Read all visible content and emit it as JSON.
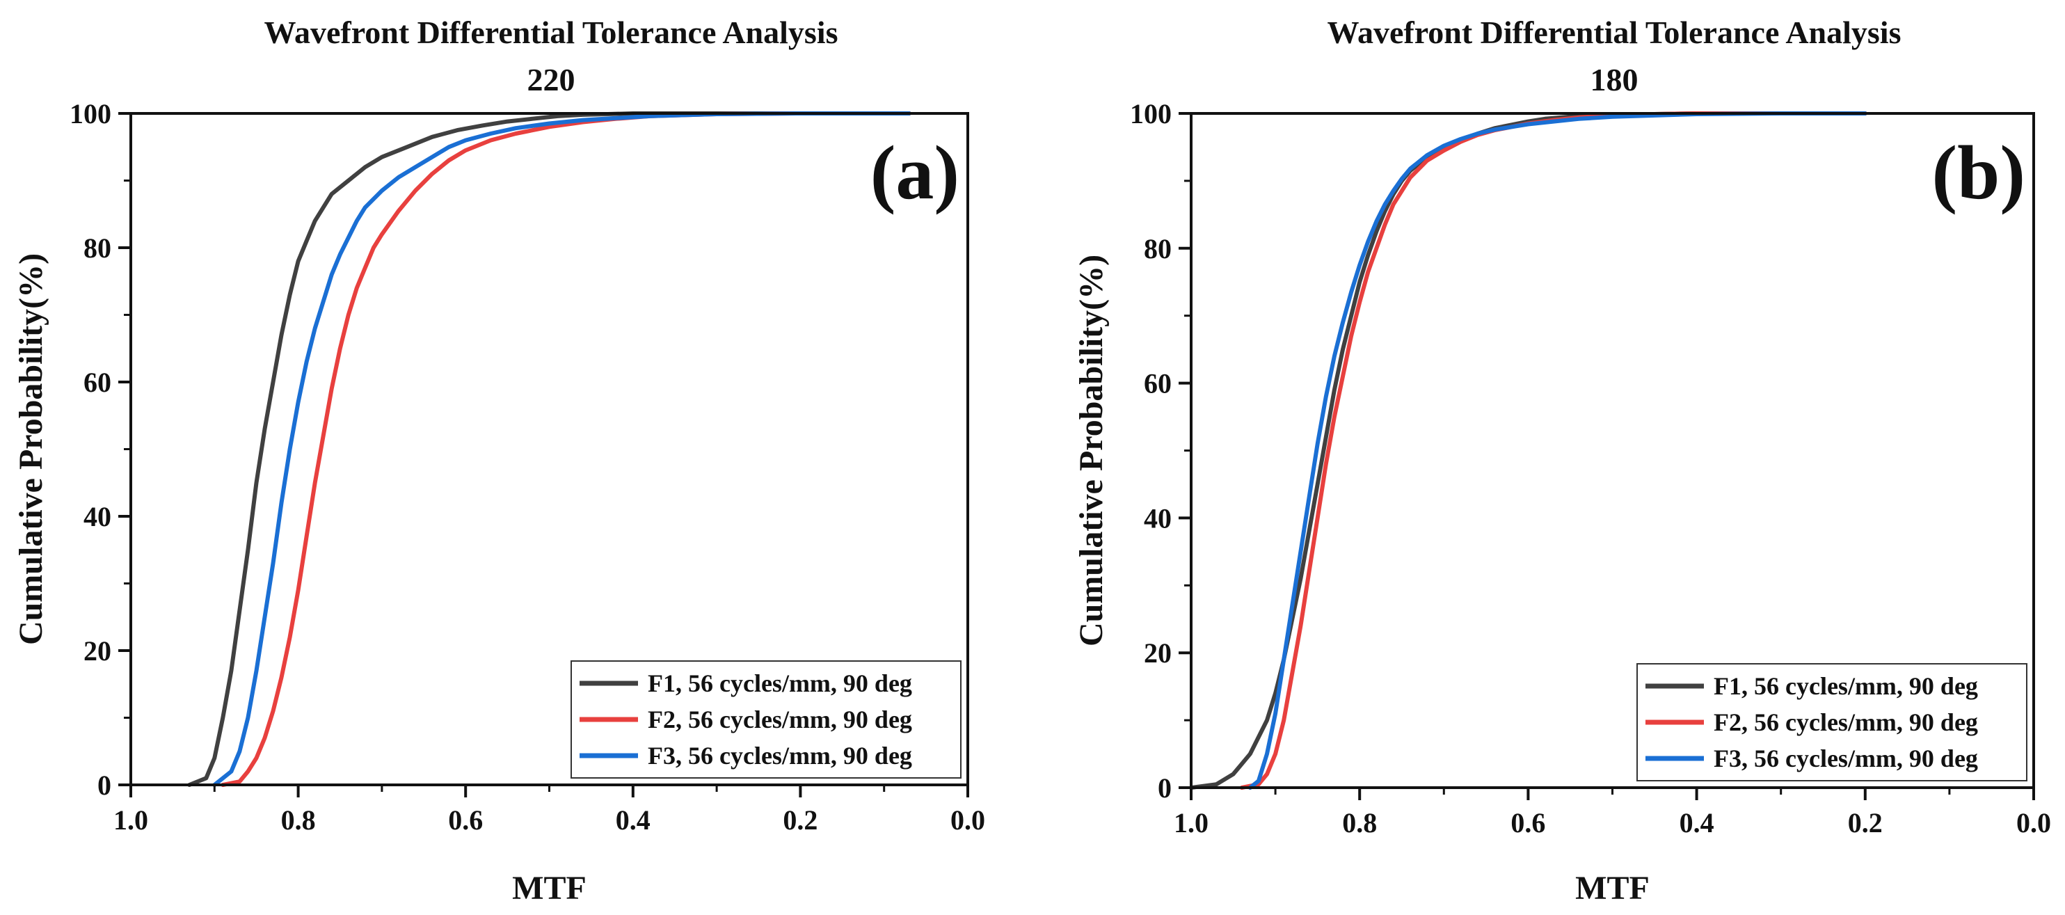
{
  "chart_data": [
    {
      "type": "line",
      "panel_label": "(a)",
      "title": "Wavefront Differential Tolerance Analysis",
      "subtitle": "220",
      "xlabel": "MTF",
      "ylabel": "Cumulative Probability(%)",
      "xlim": [
        1.0,
        0.0
      ],
      "ylim": [
        0,
        100
      ],
      "xticks": [
        "1.0",
        "0.8",
        "0.6",
        "0.4",
        "0.2",
        "0.0"
      ],
      "yticks": [
        "0",
        "20",
        "40",
        "60",
        "80",
        "100"
      ],
      "legend_position": "bottom-right",
      "series": [
        {
          "name": "F1, 56 cycles/mm, 90 deg",
          "color": "#404040",
          "x": [
            0.93,
            0.91,
            0.9,
            0.89,
            0.88,
            0.87,
            0.86,
            0.85,
            0.84,
            0.83,
            0.82,
            0.81,
            0.8,
            0.79,
            0.78,
            0.77,
            0.76,
            0.74,
            0.72,
            0.7,
            0.67,
            0.64,
            0.61,
            0.58,
            0.55,
            0.52,
            0.49,
            0.46,
            0.43,
            0.4,
            0.3,
            0.2,
            0.07
          ],
          "y": [
            0,
            1,
            4,
            10,
            17,
            26,
            35,
            45,
            53,
            60,
            67,
            73,
            78,
            81,
            84,
            86,
            88,
            90,
            92,
            93.5,
            95,
            96.5,
            97.5,
            98.2,
            98.8,
            99.2,
            99.6,
            99.8,
            99.9,
            100,
            100,
            100,
            100
          ]
        },
        {
          "name": "F2, 56 cycles/mm, 90 deg",
          "color": "#e8403e",
          "x": [
            0.89,
            0.87,
            0.86,
            0.85,
            0.84,
            0.83,
            0.82,
            0.81,
            0.8,
            0.79,
            0.78,
            0.77,
            0.76,
            0.75,
            0.74,
            0.73,
            0.72,
            0.71,
            0.7,
            0.68,
            0.66,
            0.64,
            0.62,
            0.6,
            0.57,
            0.54,
            0.5,
            0.46,
            0.42,
            0.38,
            0.3,
            0.2,
            0.07
          ],
          "y": [
            0,
            0.5,
            2,
            4,
            7,
            11,
            16,
            22,
            29,
            37,
            45,
            52,
            59,
            65,
            70,
            74,
            77,
            80,
            82,
            85.5,
            88.5,
            91,
            93,
            94.5,
            96,
            97,
            98,
            98.7,
            99.2,
            99.6,
            99.9,
            100,
            100
          ]
        },
        {
          "name": "F3, 56 cycles/mm, 90 deg",
          "color": "#1a6fd4",
          "x": [
            0.9,
            0.88,
            0.87,
            0.86,
            0.85,
            0.84,
            0.83,
            0.82,
            0.81,
            0.8,
            0.79,
            0.78,
            0.77,
            0.76,
            0.75,
            0.74,
            0.73,
            0.72,
            0.7,
            0.68,
            0.66,
            0.64,
            0.62,
            0.6,
            0.57,
            0.54,
            0.5,
            0.46,
            0.42,
            0.38,
            0.3,
            0.2,
            0.07
          ],
          "y": [
            0,
            2,
            5,
            10,
            17,
            25,
            33,
            42,
            50,
            57,
            63,
            68,
            72,
            76,
            79,
            81.5,
            84,
            86,
            88.5,
            90.5,
            92,
            93.5,
            95,
            96,
            97,
            97.8,
            98.5,
            99,
            99.3,
            99.6,
            99.9,
            100,
            100
          ]
        }
      ]
    },
    {
      "type": "line",
      "panel_label": "(b)",
      "title": "Wavefront Differential Tolerance Analysis",
      "subtitle": "180",
      "xlabel": "MTF",
      "ylabel": "Cumulative Probability(%)",
      "xlim": [
        1.0,
        0.0
      ],
      "ylim": [
        0,
        100
      ],
      "xticks": [
        "1.0",
        "0.8",
        "0.6",
        "0.4",
        "0.2",
        "0.0"
      ],
      "yticks": [
        "0",
        "20",
        "40",
        "60",
        "80",
        "100"
      ],
      "legend_position": "bottom-right",
      "series": [
        {
          "name": "F1, 56 cycles/mm, 90 deg",
          "color": "#404040",
          "x": [
            1.0,
            0.97,
            0.95,
            0.93,
            0.91,
            0.9,
            0.89,
            0.88,
            0.87,
            0.86,
            0.85,
            0.84,
            0.83,
            0.82,
            0.81,
            0.8,
            0.79,
            0.78,
            0.77,
            0.76,
            0.75,
            0.74,
            0.72,
            0.7,
            0.68,
            0.66,
            0.64,
            0.62,
            0.6,
            0.58,
            0.55,
            0.52,
            0.5,
            0.45,
            0.4,
            0.3,
            0.2
          ],
          "y": [
            0,
            0.5,
            2,
            5,
            10,
            14,
            19,
            25,
            31,
            38,
            45,
            52,
            59,
            65,
            70,
            75,
            79,
            82.5,
            85.5,
            88,
            90,
            91.5,
            93.5,
            95,
            96,
            97,
            97.8,
            98.3,
            98.8,
            99.2,
            99.5,
            99.7,
            99.8,
            99.9,
            100,
            100,
            100
          ]
        },
        {
          "name": "F2, 56 cycles/mm, 90 deg",
          "color": "#e8403e",
          "x": [
            0.94,
            0.92,
            0.91,
            0.9,
            0.89,
            0.88,
            0.87,
            0.86,
            0.85,
            0.84,
            0.83,
            0.82,
            0.81,
            0.8,
            0.79,
            0.78,
            0.77,
            0.76,
            0.75,
            0.74,
            0.72,
            0.7,
            0.68,
            0.66,
            0.64,
            0.62,
            0.6,
            0.57,
            0.54,
            0.5,
            0.45,
            0.4,
            0.3,
            0.2
          ],
          "y": [
            0,
            0.5,
            2,
            5,
            10,
            17,
            24,
            32,
            40,
            48,
            55,
            61,
            67,
            72,
            76.5,
            80,
            83.5,
            86.5,
            88.5,
            90.5,
            93,
            94.5,
            95.8,
            96.8,
            97.5,
            98,
            98.5,
            99,
            99.4,
            99.7,
            99.9,
            100,
            100,
            100
          ]
        },
        {
          "name": "F3, 56 cycles/mm, 90 deg",
          "color": "#1a6fd4",
          "x": [
            0.93,
            0.92,
            0.91,
            0.9,
            0.89,
            0.88,
            0.87,
            0.86,
            0.85,
            0.84,
            0.83,
            0.82,
            0.81,
            0.8,
            0.79,
            0.78,
            0.77,
            0.76,
            0.75,
            0.74,
            0.72,
            0.7,
            0.68,
            0.66,
            0.64,
            0.62,
            0.6,
            0.57,
            0.54,
            0.5,
            0.45,
            0.4,
            0.3,
            0.2
          ],
          "y": [
            0,
            1,
            5,
            11,
            19,
            27,
            35,
            43,
            51,
            58,
            64,
            69,
            73.5,
            77.5,
            81,
            84,
            86.5,
            88.5,
            90.3,
            91.8,
            93.8,
            95.2,
            96.2,
            97,
            97.6,
            98,
            98.4,
            98.8,
            99.2,
            99.5,
            99.7,
            99.9,
            100,
            100
          ]
        }
      ]
    }
  ]
}
